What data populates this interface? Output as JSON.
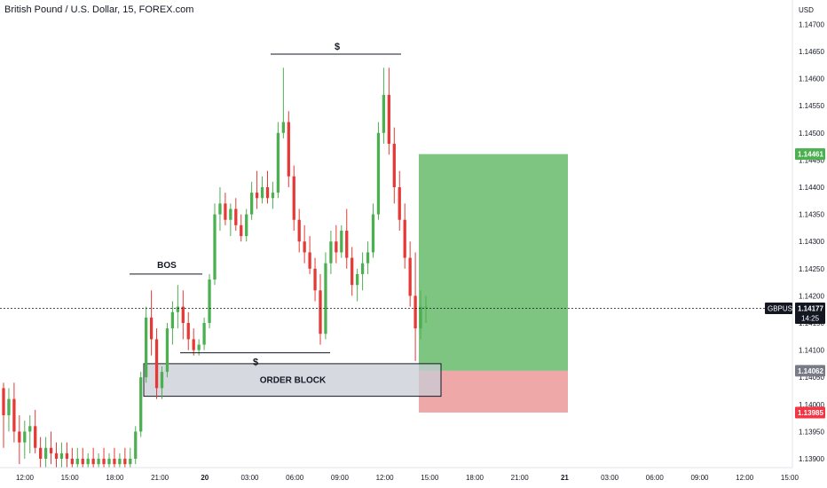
{
  "header": {
    "title": "British Pound / U.S. Dollar, 15, FOREX.com"
  },
  "price_scale": {
    "currency": "USD",
    "ticks": [
      "1.14700",
      "1.14650",
      "1.14600",
      "1.14550",
      "1.14500",
      "1.14450",
      "1.14400",
      "1.14350",
      "1.14300",
      "1.14250",
      "1.14200",
      "1.14150",
      "1.14100",
      "1.14050",
      "1.14000",
      "1.13950",
      "1.13900"
    ]
  },
  "time_scale": {
    "ticks": [
      "12:00",
      "15:00",
      "18:00",
      "21:00",
      "20",
      "03:00",
      "06:00",
      "09:00",
      "12:00",
      "15:00",
      "18:00",
      "21:00",
      "21",
      "03:00",
      "06:00",
      "09:00",
      "12:00",
      "15:00"
    ]
  },
  "badges": {
    "take_profit": "1.14461",
    "symbol": "GBPUSD",
    "price": "1.14177",
    "countdown": "14:25",
    "entry": "1.14062",
    "stop": "1.13985"
  },
  "annotations": {
    "bos": "BOS",
    "order_block": "ORDER BLOCK",
    "liquidity_top": "$",
    "liquidity_bottom": "$"
  },
  "colors": {
    "up": "#26a69a",
    "up_body": "#4caf50",
    "down": "#ef5350",
    "down_body": "#e53935",
    "profit_zone": "#4caf50",
    "loss_zone": "#e57373",
    "take_profit_badge": "#4caf50",
    "stop_badge": "#f23645",
    "entry_badge": "#787b86",
    "price_badge": "#131722"
  },
  "chart_data": {
    "type": "candlestick",
    "symbol": "GBPUSD",
    "timeframe": "15",
    "ylim": [
      1.1388,
      1.1471
    ],
    "y_ticks": [
      1.147,
      1.1465,
      1.146,
      1.1455,
      1.145,
      1.1445,
      1.144,
      1.1435,
      1.143,
      1.1425,
      1.142,
      1.1415,
      1.141,
      1.1405,
      1.14,
      1.1395,
      1.139
    ],
    "last_price": 1.14177,
    "position": {
      "side": "long",
      "entry": 1.14062,
      "take_profit": 1.14461,
      "stop_loss": 1.13985
    },
    "zones": [
      {
        "label": "ORDER BLOCK",
        "top": 1.14075,
        "bottom": 1.14015
      },
      {
        "label": "BOS",
        "level": 1.1424
      },
      {
        "label": "$",
        "level": 1.14645
      },
      {
        "label": "$",
        "level": 1.14095
      }
    ],
    "ohlc": [
      [
        1.1403,
        1.1404,
        1.1392,
        1.1398
      ],
      [
        1.1398,
        1.1403,
        1.1395,
        1.1401
      ],
      [
        1.1401,
        1.1404,
        1.1393,
        1.1395
      ],
      [
        1.1395,
        1.1398,
        1.1389,
        1.1393
      ],
      [
        1.1393,
        1.1397,
        1.139,
        1.1395
      ],
      [
        1.1395,
        1.1398,
        1.1391,
        1.1396
      ],
      [
        1.1396,
        1.1399,
        1.1391,
        1.1392
      ],
      [
        1.1392,
        1.1394,
        1.1388,
        1.139
      ],
      [
        1.139,
        1.1394,
        1.1388,
        1.1392
      ],
      [
        1.1392,
        1.1395,
        1.1389,
        1.1391
      ],
      [
        1.1391,
        1.1393,
        1.1388,
        1.139
      ],
      [
        1.139,
        1.1393,
        1.1388,
        1.1391
      ],
      [
        1.1391,
        1.1393,
        1.1388,
        1.139
      ],
      [
        1.139,
        1.1392,
        1.1388,
        1.1389
      ],
      [
        1.1389,
        1.1392,
        1.1388,
        1.139
      ],
      [
        1.139,
        1.1392,
        1.1388,
        1.1389
      ],
      [
        1.1389,
        1.1391,
        1.1388,
        1.139
      ],
      [
        1.139,
        1.1392,
        1.1388,
        1.1389
      ],
      [
        1.1389,
        1.1391,
        1.1388,
        1.139
      ],
      [
        1.139,
        1.1392,
        1.1388,
        1.1389
      ],
      [
        1.1389,
        1.1391,
        1.1388,
        1.139
      ],
      [
        1.139,
        1.1392,
        1.1388,
        1.1389
      ],
      [
        1.1389,
        1.1391,
        1.1388,
        1.139
      ],
      [
        1.139,
        1.1392,
        1.1388,
        1.1389
      ],
      [
        1.1389,
        1.1392,
        1.1388,
        1.139
      ],
      [
        1.139,
        1.1396,
        1.1389,
        1.1395
      ],
      [
        1.1395,
        1.1406,
        1.1394,
        1.1405
      ],
      [
        1.1405,
        1.1418,
        1.1404,
        1.1416
      ],
      [
        1.1416,
        1.1421,
        1.1409,
        1.1412
      ],
      [
        1.1412,
        1.1414,
        1.1401,
        1.1403
      ],
      [
        1.1403,
        1.1407,
        1.1401,
        1.1406
      ],
      [
        1.1406,
        1.1415,
        1.1405,
        1.1414
      ],
      [
        1.1414,
        1.1419,
        1.1411,
        1.1417
      ],
      [
        1.1417,
        1.1422,
        1.1414,
        1.1418
      ],
      [
        1.1418,
        1.1421,
        1.1412,
        1.1415
      ],
      [
        1.1415,
        1.1417,
        1.141,
        1.1412
      ],
      [
        1.1412,
        1.1414,
        1.1409,
        1.141
      ],
      [
        1.141,
        1.1412,
        1.1409,
        1.1411
      ],
      [
        1.1411,
        1.1416,
        1.141,
        1.1415
      ],
      [
        1.1415,
        1.1424,
        1.1414,
        1.1423
      ],
      [
        1.1423,
        1.1437,
        1.1422,
        1.1435
      ],
      [
        1.1435,
        1.144,
        1.1432,
        1.1437
      ],
      [
        1.1437,
        1.1439,
        1.1433,
        1.1434
      ],
      [
        1.1434,
        1.1437,
        1.1431,
        1.1436
      ],
      [
        1.1436,
        1.1438,
        1.1432,
        1.1433
      ],
      [
        1.1433,
        1.1435,
        1.143,
        1.1431
      ],
      [
        1.1431,
        1.1436,
        1.143,
        1.1435
      ],
      [
        1.1435,
        1.1441,
        1.1434,
        1.1439
      ],
      [
        1.1439,
        1.1443,
        1.1436,
        1.1438
      ],
      [
        1.1438,
        1.1442,
        1.1437,
        1.144
      ],
      [
        1.144,
        1.1443,
        1.1437,
        1.1438
      ],
      [
        1.1438,
        1.1441,
        1.1436,
        1.1439
      ],
      [
        1.1439,
        1.1452,
        1.1438,
        1.145
      ],
      [
        1.145,
        1.1462,
        1.1449,
        1.1452
      ],
      [
        1.1452,
        1.1454,
        1.144,
        1.1442
      ],
      [
        1.1442,
        1.1444,
        1.1432,
        1.1434
      ],
      [
        1.1434,
        1.1436,
        1.1428,
        1.143
      ],
      [
        1.143,
        1.1433,
        1.1426,
        1.1428
      ],
      [
        1.1428,
        1.1431,
        1.1424,
        1.1425
      ],
      [
        1.1425,
        1.1427,
        1.1419,
        1.1421
      ],
      [
        1.1421,
        1.1424,
        1.1411,
        1.1413
      ],
      [
        1.1413,
        1.1428,
        1.1412,
        1.1426
      ],
      [
        1.1426,
        1.1432,
        1.1424,
        1.143
      ],
      [
        1.143,
        1.1433,
        1.1426,
        1.1428
      ],
      [
        1.1428,
        1.1433,
        1.1427,
        1.1432
      ],
      [
        1.1432,
        1.1436,
        1.1425,
        1.1427
      ],
      [
        1.1427,
        1.1429,
        1.142,
        1.1422
      ],
      [
        1.1422,
        1.1425,
        1.1419,
        1.1424
      ],
      [
        1.1424,
        1.1428,
        1.1421,
        1.1426
      ],
      [
        1.1426,
        1.143,
        1.1424,
        1.1428
      ],
      [
        1.1428,
        1.1437,
        1.1427,
        1.1435
      ],
      [
        1.1435,
        1.1452,
        1.1434,
        1.145
      ],
      [
        1.145,
        1.1462,
        1.1448,
        1.1457
      ],
      [
        1.1457,
        1.1462,
        1.1446,
        1.1448
      ],
      [
        1.1448,
        1.1451,
        1.1437,
        1.144
      ],
      [
        1.144,
        1.1443,
        1.1432,
        1.1434
      ],
      [
        1.1434,
        1.1437,
        1.1425,
        1.1427
      ],
      [
        1.1427,
        1.143,
        1.1418,
        1.142
      ],
      [
        1.142,
        1.1428,
        1.1408,
        1.1414
      ],
      [
        1.1414,
        1.1421,
        1.1412,
        1.1418
      ],
      [
        1.1418,
        1.142,
        1.1415,
        1.1418
      ]
    ]
  }
}
